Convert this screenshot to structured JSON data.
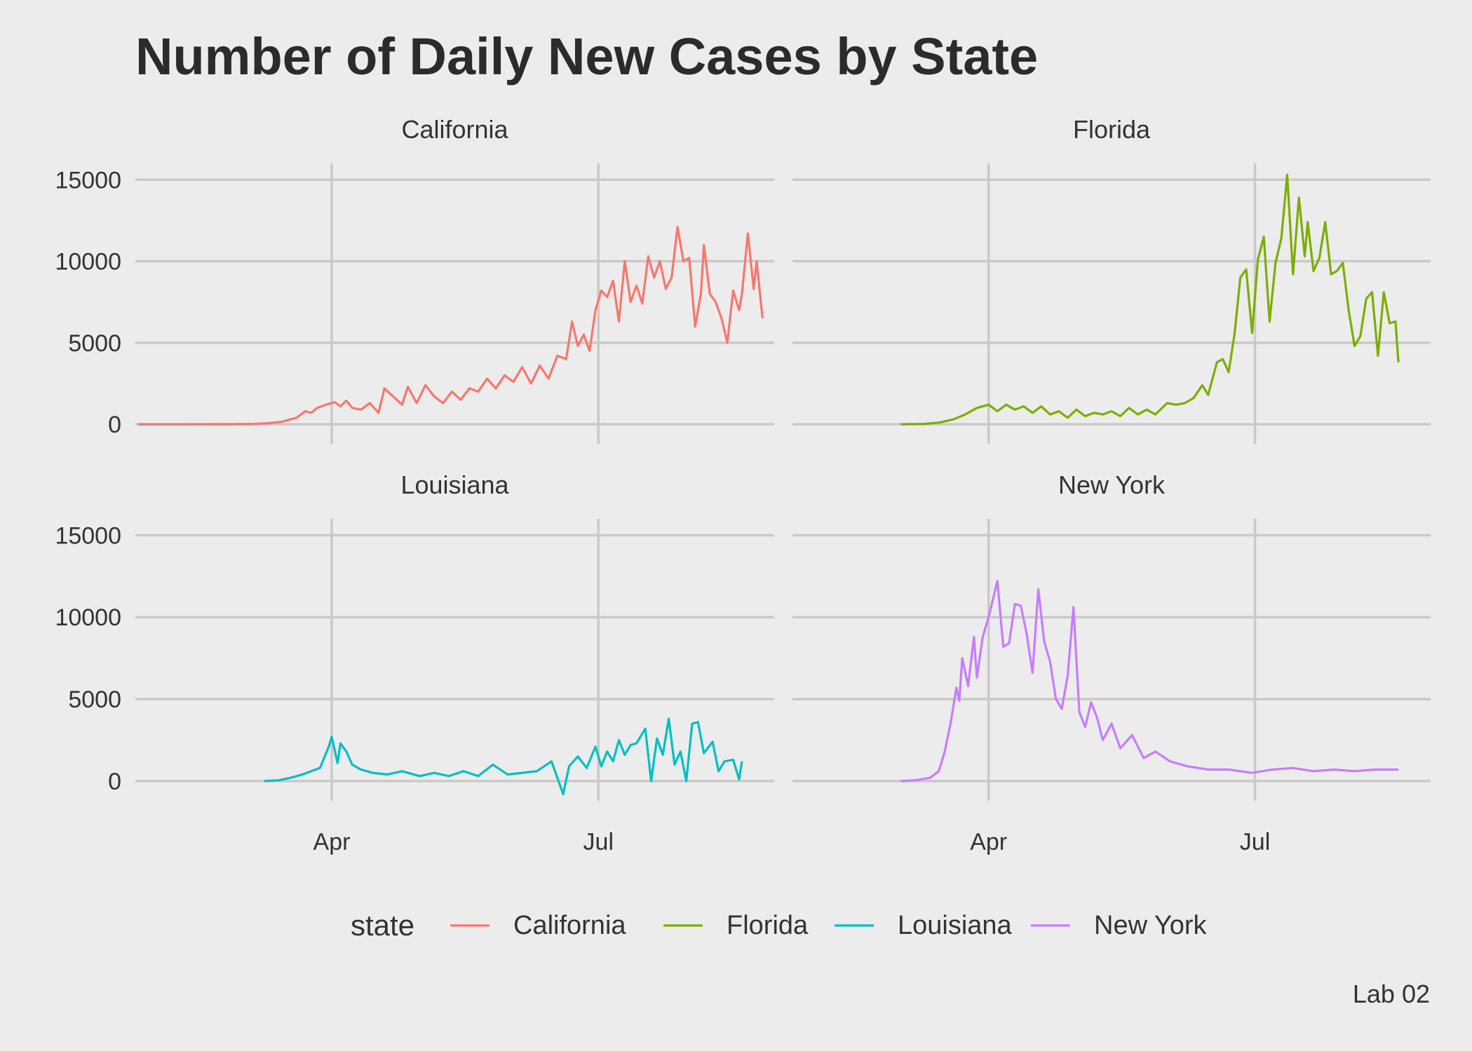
{
  "chart_data": {
    "type": "line",
    "title": "Number of Daily New Cases by State",
    "caption": "Lab 02",
    "xlabel": "",
    "ylabel": "",
    "x_ticks": [
      {
        "label": "Apr",
        "date": "2020-04-01"
      },
      {
        "label": "Jul",
        "date": "2020-07-01"
      }
    ],
    "x_range": [
      "2020-01-25",
      "2020-08-30"
    ],
    "y_ticks": [
      0,
      5000,
      10000,
      15000
    ],
    "ylim": [
      -1200,
      16000
    ],
    "grid": true,
    "facet_layout": "2x2",
    "legend": {
      "title": "state",
      "position": "bottom"
    },
    "series": [
      {
        "name": "California",
        "color": "#F8766D",
        "points": [
          [
            "2020-01-26",
            0
          ],
          [
            "2020-02-10",
            0
          ],
          [
            "2020-02-25",
            5
          ],
          [
            "2020-03-05",
            20
          ],
          [
            "2020-03-10",
            60
          ],
          [
            "2020-03-15",
            150
          ],
          [
            "2020-03-20",
            400
          ],
          [
            "2020-03-23",
            800
          ],
          [
            "2020-03-25",
            700
          ],
          [
            "2020-03-27",
            1000
          ],
          [
            "2020-03-30",
            1200
          ],
          [
            "2020-04-02",
            1350
          ],
          [
            "2020-04-04",
            1100
          ],
          [
            "2020-04-06",
            1450
          ],
          [
            "2020-04-08",
            1000
          ],
          [
            "2020-04-11",
            900
          ],
          [
            "2020-04-14",
            1300
          ],
          [
            "2020-04-17",
            700
          ],
          [
            "2020-04-19",
            2200
          ],
          [
            "2020-04-22",
            1700
          ],
          [
            "2020-04-25",
            1200
          ],
          [
            "2020-04-27",
            2300
          ],
          [
            "2020-04-30",
            1300
          ],
          [
            "2020-05-03",
            2400
          ],
          [
            "2020-05-06",
            1700
          ],
          [
            "2020-05-09",
            1300
          ],
          [
            "2020-05-12",
            2000
          ],
          [
            "2020-05-15",
            1500
          ],
          [
            "2020-05-18",
            2200
          ],
          [
            "2020-05-21",
            2000
          ],
          [
            "2020-05-24",
            2800
          ],
          [
            "2020-05-27",
            2200
          ],
          [
            "2020-05-30",
            3000
          ],
          [
            "2020-06-02",
            2600
          ],
          [
            "2020-06-05",
            3500
          ],
          [
            "2020-06-08",
            2500
          ],
          [
            "2020-06-11",
            3600
          ],
          [
            "2020-06-14",
            2800
          ],
          [
            "2020-06-17",
            4200
          ],
          [
            "2020-06-20",
            4000
          ],
          [
            "2020-06-22",
            6300
          ],
          [
            "2020-06-24",
            4800
          ],
          [
            "2020-06-26",
            5500
          ],
          [
            "2020-06-28",
            4500
          ],
          [
            "2020-06-30",
            7000
          ],
          [
            "2020-07-02",
            8200
          ],
          [
            "2020-07-04",
            7800
          ],
          [
            "2020-07-06",
            8800
          ],
          [
            "2020-07-08",
            6300
          ],
          [
            "2020-07-10",
            10000
          ],
          [
            "2020-07-12",
            7500
          ],
          [
            "2020-07-14",
            8500
          ],
          [
            "2020-07-16",
            7400
          ],
          [
            "2020-07-18",
            10300
          ],
          [
            "2020-07-20",
            9000
          ],
          [
            "2020-07-22",
            10000
          ],
          [
            "2020-07-24",
            8300
          ],
          [
            "2020-07-26",
            9000
          ],
          [
            "2020-07-28",
            12100
          ],
          [
            "2020-07-30",
            10000
          ],
          [
            "2020-08-01",
            10200
          ],
          [
            "2020-08-03",
            6000
          ],
          [
            "2020-08-05",
            8000
          ],
          [
            "2020-08-06",
            11000
          ],
          [
            "2020-08-08",
            8000
          ],
          [
            "2020-08-10",
            7500
          ],
          [
            "2020-08-12",
            6500
          ],
          [
            "2020-08-14",
            5000
          ],
          [
            "2020-08-16",
            8200
          ],
          [
            "2020-08-18",
            7000
          ],
          [
            "2020-08-19",
            8000
          ],
          [
            "2020-08-21",
            11700
          ],
          [
            "2020-08-23",
            8300
          ],
          [
            "2020-08-24",
            10000
          ],
          [
            "2020-08-26",
            6500
          ]
        ]
      },
      {
        "name": "Florida",
        "color": "#7CAE00",
        "points": [
          [
            "2020-03-02",
            0
          ],
          [
            "2020-03-10",
            20
          ],
          [
            "2020-03-15",
            100
          ],
          [
            "2020-03-20",
            300
          ],
          [
            "2020-03-24",
            600
          ],
          [
            "2020-03-28",
            1000
          ],
          [
            "2020-04-01",
            1200
          ],
          [
            "2020-04-04",
            800
          ],
          [
            "2020-04-07",
            1200
          ],
          [
            "2020-04-10",
            900
          ],
          [
            "2020-04-13",
            1100
          ],
          [
            "2020-04-16",
            700
          ],
          [
            "2020-04-19",
            1100
          ],
          [
            "2020-04-22",
            600
          ],
          [
            "2020-04-25",
            800
          ],
          [
            "2020-04-28",
            400
          ],
          [
            "2020-05-01",
            900
          ],
          [
            "2020-05-04",
            500
          ],
          [
            "2020-05-07",
            700
          ],
          [
            "2020-05-10",
            600
          ],
          [
            "2020-05-13",
            800
          ],
          [
            "2020-05-16",
            500
          ],
          [
            "2020-05-19",
            1000
          ],
          [
            "2020-05-22",
            600
          ],
          [
            "2020-05-25",
            900
          ],
          [
            "2020-05-28",
            600
          ],
          [
            "2020-06-01",
            1300
          ],
          [
            "2020-06-04",
            1200
          ],
          [
            "2020-06-07",
            1300
          ],
          [
            "2020-06-10",
            1600
          ],
          [
            "2020-06-13",
            2400
          ],
          [
            "2020-06-15",
            1800
          ],
          [
            "2020-06-18",
            3800
          ],
          [
            "2020-06-20",
            4000
          ],
          [
            "2020-06-22",
            3200
          ],
          [
            "2020-06-24",
            5500
          ],
          [
            "2020-06-26",
            9000
          ],
          [
            "2020-06-28",
            9500
          ],
          [
            "2020-06-30",
            5600
          ],
          [
            "2020-07-02",
            10100
          ],
          [
            "2020-07-04",
            11500
          ],
          [
            "2020-07-06",
            6300
          ],
          [
            "2020-07-08",
            9900
          ],
          [
            "2020-07-10",
            11400
          ],
          [
            "2020-07-12",
            15300
          ],
          [
            "2020-07-14",
            9200
          ],
          [
            "2020-07-16",
            13900
          ],
          [
            "2020-07-18",
            10300
          ],
          [
            "2020-07-19",
            12400
          ],
          [
            "2020-07-21",
            9400
          ],
          [
            "2020-07-23",
            10200
          ],
          [
            "2020-07-25",
            12400
          ],
          [
            "2020-07-27",
            9200
          ],
          [
            "2020-07-29",
            9400
          ],
          [
            "2020-07-31",
            9900
          ],
          [
            "2020-08-02",
            7000
          ],
          [
            "2020-08-04",
            4800
          ],
          [
            "2020-08-06",
            5400
          ],
          [
            "2020-08-08",
            7700
          ],
          [
            "2020-08-10",
            8100
          ],
          [
            "2020-08-12",
            4200
          ],
          [
            "2020-08-14",
            8100
          ],
          [
            "2020-08-16",
            6200
          ],
          [
            "2020-08-18",
            6300
          ],
          [
            "2020-08-19",
            3800
          ]
        ]
      },
      {
        "name": "Louisiana",
        "color": "#00BFC4",
        "points": [
          [
            "2020-03-09",
            0
          ],
          [
            "2020-03-14",
            50
          ],
          [
            "2020-03-18",
            200
          ],
          [
            "2020-03-22",
            400
          ],
          [
            "2020-03-25",
            600
          ],
          [
            "2020-03-28",
            800
          ],
          [
            "2020-03-31",
            2100
          ],
          [
            "2020-04-01",
            2700
          ],
          [
            "2020-04-03",
            1100
          ],
          [
            "2020-04-04",
            2300
          ],
          [
            "2020-04-06",
            1800
          ],
          [
            "2020-04-08",
            1000
          ],
          [
            "2020-04-11",
            700
          ],
          [
            "2020-04-15",
            500
          ],
          [
            "2020-04-20",
            400
          ],
          [
            "2020-04-25",
            600
          ],
          [
            "2020-05-01",
            300
          ],
          [
            "2020-05-06",
            500
          ],
          [
            "2020-05-11",
            300
          ],
          [
            "2020-05-16",
            600
          ],
          [
            "2020-05-21",
            300
          ],
          [
            "2020-05-26",
            1000
          ],
          [
            "2020-05-31",
            400
          ],
          [
            "2020-06-05",
            500
          ],
          [
            "2020-06-10",
            600
          ],
          [
            "2020-06-15",
            1200
          ],
          [
            "2020-06-19",
            -800
          ],
          [
            "2020-06-21",
            900
          ],
          [
            "2020-06-24",
            1500
          ],
          [
            "2020-06-27",
            800
          ],
          [
            "2020-06-30",
            2100
          ],
          [
            "2020-07-02",
            900
          ],
          [
            "2020-07-04",
            1800
          ],
          [
            "2020-07-06",
            1200
          ],
          [
            "2020-07-08",
            2500
          ],
          [
            "2020-07-10",
            1600
          ],
          [
            "2020-07-12",
            2200
          ],
          [
            "2020-07-14",
            2300
          ],
          [
            "2020-07-17",
            3200
          ],
          [
            "2020-07-19",
            0
          ],
          [
            "2020-07-21",
            2600
          ],
          [
            "2020-07-23",
            1600
          ],
          [
            "2020-07-25",
            3800
          ],
          [
            "2020-07-27",
            1000
          ],
          [
            "2020-07-29",
            1800
          ],
          [
            "2020-07-31",
            0
          ],
          [
            "2020-08-02",
            3500
          ],
          [
            "2020-08-04",
            3600
          ],
          [
            "2020-08-06",
            1700
          ],
          [
            "2020-08-09",
            2400
          ],
          [
            "2020-08-11",
            600
          ],
          [
            "2020-08-13",
            1200
          ],
          [
            "2020-08-16",
            1300
          ],
          [
            "2020-08-18",
            100
          ],
          [
            "2020-08-19",
            1200
          ]
        ]
      },
      {
        "name": "New York",
        "color": "#C77CFF",
        "points": [
          [
            "2020-03-02",
            0
          ],
          [
            "2020-03-07",
            50
          ],
          [
            "2020-03-12",
            200
          ],
          [
            "2020-03-15",
            600
          ],
          [
            "2020-03-17",
            1800
          ],
          [
            "2020-03-19",
            3500
          ],
          [
            "2020-03-21",
            5700
          ],
          [
            "2020-03-22",
            4900
          ],
          [
            "2020-03-23",
            7500
          ],
          [
            "2020-03-25",
            5800
          ],
          [
            "2020-03-27",
            8800
          ],
          [
            "2020-03-28",
            6300
          ],
          [
            "2020-03-30",
            8800
          ],
          [
            "2020-04-01",
            10000
          ],
          [
            "2020-04-04",
            12200
          ],
          [
            "2020-04-06",
            8200
          ],
          [
            "2020-04-08",
            8400
          ],
          [
            "2020-04-10",
            10800
          ],
          [
            "2020-04-12",
            10700
          ],
          [
            "2020-04-14",
            9000
          ],
          [
            "2020-04-16",
            6600
          ],
          [
            "2020-04-18",
            11700
          ],
          [
            "2020-04-20",
            8500
          ],
          [
            "2020-04-22",
            7300
          ],
          [
            "2020-04-24",
            5000
          ],
          [
            "2020-04-26",
            4400
          ],
          [
            "2020-04-28",
            6400
          ],
          [
            "2020-04-30",
            10600
          ],
          [
            "2020-05-02",
            4200
          ],
          [
            "2020-05-04",
            3300
          ],
          [
            "2020-05-06",
            4800
          ],
          [
            "2020-05-08",
            3900
          ],
          [
            "2020-05-10",
            2500
          ],
          [
            "2020-05-13",
            3500
          ],
          [
            "2020-05-16",
            2000
          ],
          [
            "2020-05-20",
            2800
          ],
          [
            "2020-05-24",
            1400
          ],
          [
            "2020-05-28",
            1800
          ],
          [
            "2020-06-02",
            1200
          ],
          [
            "2020-06-08",
            900
          ],
          [
            "2020-06-15",
            700
          ],
          [
            "2020-06-22",
            700
          ],
          [
            "2020-06-30",
            500
          ],
          [
            "2020-07-07",
            700
          ],
          [
            "2020-07-14",
            800
          ],
          [
            "2020-07-21",
            600
          ],
          [
            "2020-07-28",
            700
          ],
          [
            "2020-08-04",
            600
          ],
          [
            "2020-08-11",
            700
          ],
          [
            "2020-08-19",
            700
          ]
        ]
      }
    ]
  }
}
